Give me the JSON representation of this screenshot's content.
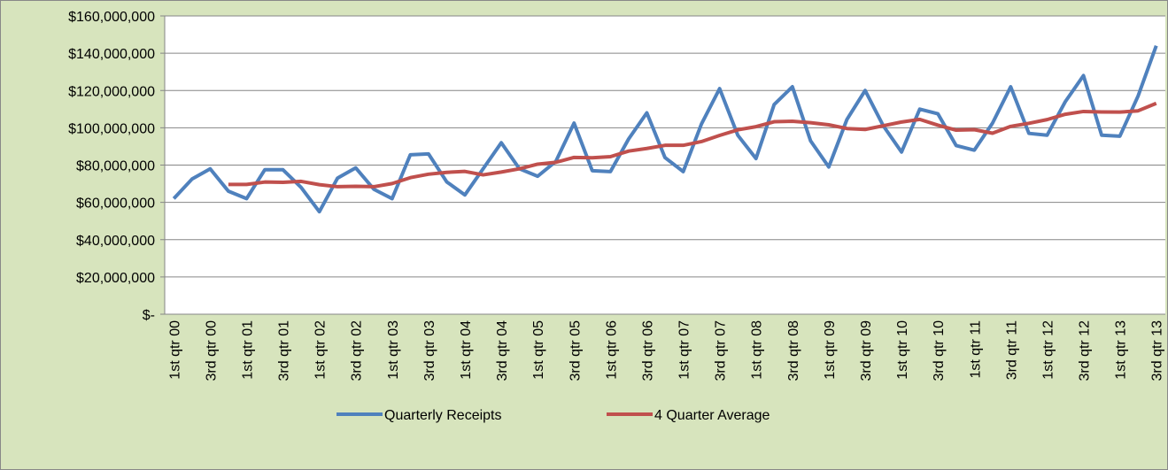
{
  "chart_data": {
    "type": "line",
    "categories": [
      "1st qtr 00",
      null,
      "3rd qtr 00",
      null,
      "1st qtr 01",
      null,
      "3rd qtr 01",
      null,
      "1st qtr 02",
      null,
      "3rd qtr 02",
      null,
      "1st qtr 03",
      null,
      "3rd qtr 03",
      null,
      "1st qtr 04",
      null,
      "3rd qtr 04",
      null,
      "1st qtr 05",
      null,
      "3rd qtr 05",
      null,
      "1st qtr 06",
      null,
      "3rd qtr 06",
      null,
      "1st qtr 07",
      null,
      "3rd qtr 07",
      null,
      "1st qtr 08",
      null,
      "3rd qtr 08",
      null,
      "1st qtr 09",
      null,
      "3rd qtr 09",
      null,
      "1st qtr 10",
      null,
      "3rd qtr 10",
      null,
      "1st qtr 11",
      null,
      "3rd qtr 11",
      null,
      "1st qtr 12",
      null,
      "3rd qtr 12",
      null,
      "1st qtr 13",
      null,
      "3rd qtr 13"
    ],
    "series": [
      {
        "name": "Quarterly Receipts",
        "color": "#4f81bd",
        "values": [
          62000000,
          72500000,
          78000000,
          66000000,
          62000000,
          77500000,
          77500000,
          68000000,
          55000000,
          73000000,
          78500000,
          67000000,
          62000000,
          85500000,
          86000000,
          71000000,
          64000000,
          78000000,
          92000000,
          78000000,
          74000000,
          82000000,
          102500000,
          77000000,
          76500000,
          94000000,
          108000000,
          84000000,
          76500000,
          102000000,
          121000000,
          96000000,
          83500000,
          112500000,
          122000000,
          93000000,
          79000000,
          104500000,
          120000000,
          101000000,
          87000000,
          110000000,
          107500000,
          90500000,
          88000000,
          102500000,
          122000000,
          97000000,
          96000000,
          114000000,
          128000000,
          96000000,
          95500000,
          117000000,
          144000000
        ]
      },
      {
        "name": "4 Quarter Average",
        "color": "#c0504d",
        "values": [
          null,
          null,
          null,
          69600000,
          69600000,
          70900000,
          70750000,
          71250000,
          69500000,
          68400000,
          68600000,
          68400000,
          70100000,
          73250000,
          75100000,
          76100000,
          76600000,
          74750000,
          76250000,
          78000000,
          80500000,
          81500000,
          84100000,
          83900000,
          84500000,
          87500000,
          88900000,
          90600000,
          90600000,
          92600000,
          95900000,
          98900000,
          100600000,
          103250000,
          103500000,
          102750000,
          101600000,
          99600000,
          99100000,
          101100000,
          103100000,
          104500000,
          101400000,
          98750000,
          99000000,
          97100000,
          100750000,
          102400000,
          104400000,
          107250000,
          108750000,
          108500000,
          108400000,
          109100000,
          113100000
        ]
      }
    ],
    "ylim": [
      0,
      160000000
    ],
    "yticks": [
      {
        "value": 0,
        "label": "$-"
      },
      {
        "value": 20000000,
        "label": "$20,000,000"
      },
      {
        "value": 40000000,
        "label": "$40,000,000"
      },
      {
        "value": 60000000,
        "label": "$60,000,000"
      },
      {
        "value": 80000000,
        "label": "$80,000,000"
      },
      {
        "value": 100000000,
        "label": "$100,000,000"
      },
      {
        "value": 120000000,
        "label": "$120,000,000"
      },
      {
        "value": 140000000,
        "label": "$140,000,000"
      },
      {
        "value": 160000000,
        "label": "$160,000,000"
      }
    ],
    "grid": true,
    "legend": "bottom"
  }
}
